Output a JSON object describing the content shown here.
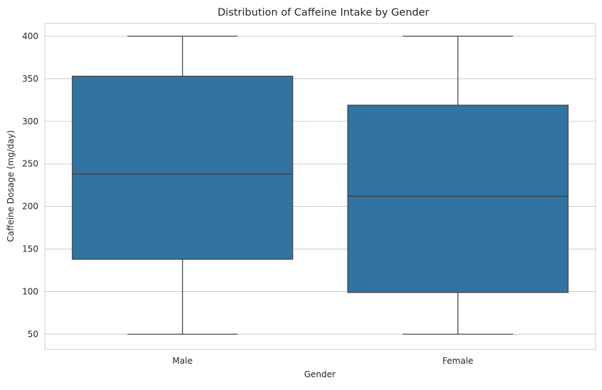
{
  "chart_data": {
    "type": "box",
    "title": "Distribution of Caffeine Intake by Gender",
    "xlabel": "Gender",
    "ylabel": "Caffeine Dosage (mg/day)",
    "categories": [
      "Male",
      "Female"
    ],
    "boxes": [
      {
        "category": "Male",
        "min": 50,
        "q1": 138,
        "median": 238,
        "q3": 353,
        "max": 400
      },
      {
        "category": "Female",
        "min": 50,
        "q1": 99,
        "median": 212,
        "q3": 319,
        "max": 400
      }
    ],
    "ylim": [
      32,
      415
    ],
    "yticks": [
      50,
      100,
      150,
      200,
      250,
      300,
      350,
      400
    ],
    "ytick_labels": [
      "50",
      "100",
      "150",
      "200",
      "250",
      "300",
      "350",
      "400"
    ],
    "grid": true,
    "box_color": "#3274a1",
    "line_color": "#3d3d3d"
  }
}
